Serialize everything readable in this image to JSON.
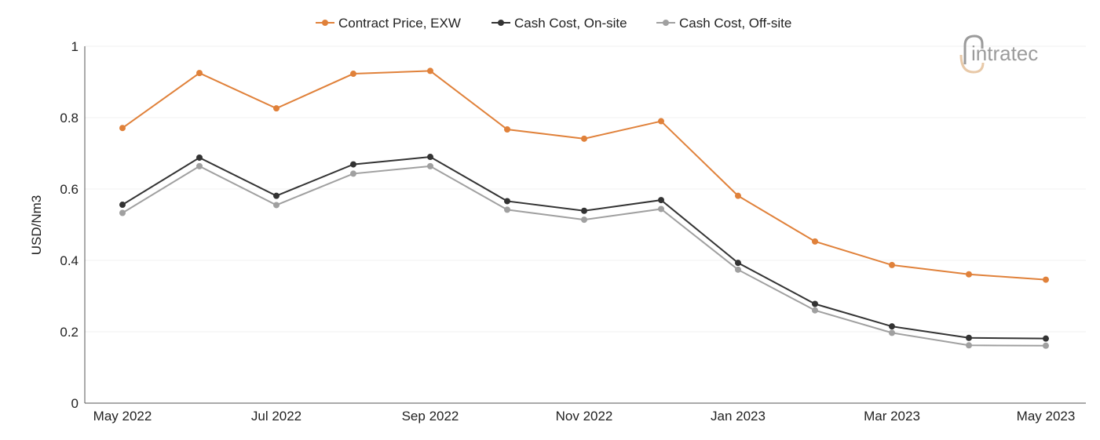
{
  "chart_data": {
    "type": "line",
    "title": "",
    "xlabel": "",
    "ylabel": "USD/Nm3",
    "ylim": [
      0,
      1
    ],
    "y_ticks": [
      "0",
      "0.2",
      "0.4",
      "0.6",
      "0.8",
      "1"
    ],
    "categories": [
      "May 2022",
      "Jun 2022",
      "Jul 2022",
      "Aug 2022",
      "Sep 2022",
      "Oct 2022",
      "Nov 2022",
      "Dec 2022",
      "Jan 2023",
      "Feb 2023",
      "Mar 2023",
      "Apr 2023",
      "May 2023"
    ],
    "x_tick_labels": [
      "May 2022",
      "",
      "Jul 2022",
      "",
      "Sep 2022",
      "",
      "Nov 2022",
      "",
      "Jan 2023",
      "",
      "Mar 2023",
      "",
      "May 2023"
    ],
    "grid": true,
    "legend_position": "top",
    "series": [
      {
        "name": "Contract Price, EXW",
        "color": "#e0813a",
        "values": [
          0.771,
          0.925,
          0.826,
          0.923,
          0.931,
          0.767,
          0.741,
          0.79,
          0.581,
          0.453,
          0.387,
          0.361,
          0.346
        ]
      },
      {
        "name": "Cash Cost, On-site",
        "color": "#333333",
        "values": [
          0.556,
          0.688,
          0.581,
          0.669,
          0.69,
          0.566,
          0.539,
          0.569,
          0.393,
          0.278,
          0.215,
          0.183,
          0.181
        ]
      },
      {
        "name": "Cash Cost, Off-site",
        "color": "#a0a0a0",
        "values": [
          0.533,
          0.664,
          0.555,
          0.643,
          0.664,
          0.542,
          0.514,
          0.544,
          0.374,
          0.26,
          0.197,
          0.162,
          0.161
        ]
      }
    ]
  },
  "logo": {
    "text": "intratec"
  }
}
